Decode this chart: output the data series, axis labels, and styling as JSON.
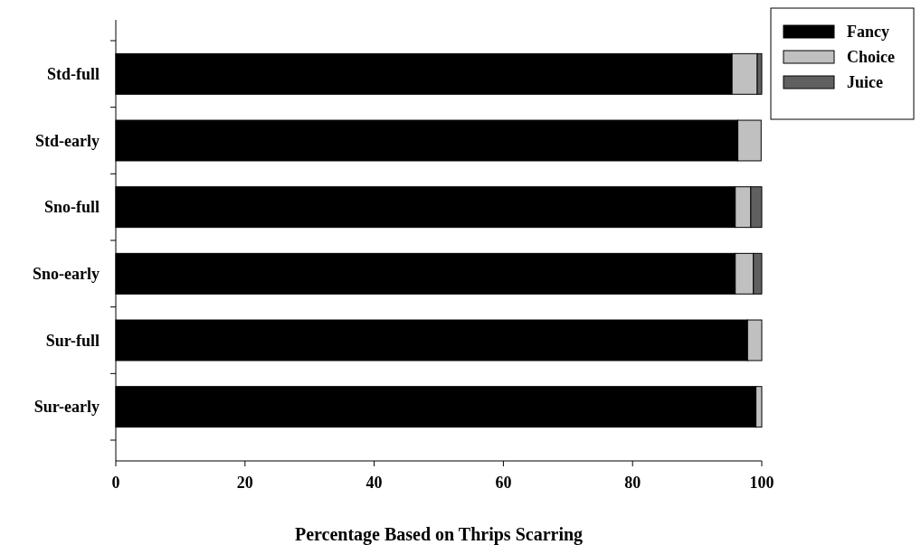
{
  "chart_data": {
    "type": "bar",
    "orientation": "horizontal",
    "stacked": true,
    "xlabel": "Percentage Based on Thrips Scarring",
    "categories": [
      "Std-full",
      "Std-early",
      "Sno-full",
      "Sno-early",
      "Sur-full",
      "Sur-early"
    ],
    "series": [
      {
        "name": "Fancy",
        "color": "#000000",
        "values": [
          95.4,
          96.3,
          95.9,
          95.9,
          97.8,
          99.1
        ]
      },
      {
        "name": "Choice",
        "color": "#c0c0c0",
        "values": [
          3.9,
          3.6,
          2.4,
          2.8,
          2.2,
          0.9
        ]
      },
      {
        "name": "Juice",
        "color": "#606060",
        "values": [
          0.7,
          0,
          1.7,
          1.3,
          0,
          0
        ]
      }
    ],
    "xlim": [
      0,
      100
    ],
    "xticks": [
      0,
      20,
      40,
      60,
      80,
      100
    ],
    "grid": false,
    "legend": "top right"
  }
}
